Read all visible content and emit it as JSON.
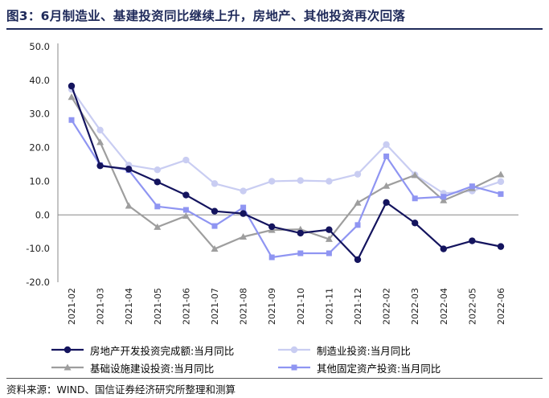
{
  "figure": {
    "title": "图3：6月制造业、基建投资同比继续上升，房地产、其他投资再次回落",
    "source": "资料来源：WIND、国信证券经济研究所整理和测算"
  },
  "chart_data": {
    "type": "line",
    "categories": [
      "2021-02",
      "2021-03",
      "2021-04",
      "2021-05",
      "2021-06",
      "2021-07",
      "2021-08",
      "2021-09",
      "2021-10",
      "2021-11",
      "2021-12",
      "2022-02",
      "2022-03",
      "2022-04",
      "2022-05",
      "2022-06"
    ],
    "y_tick_labels": [
      "50.0",
      "40.0",
      "30.0",
      "20.0",
      "10.0",
      "0.0",
      "-10.0",
      "-20.0"
    ],
    "ylim": [
      -20,
      50
    ],
    "grid": false,
    "legend_position": "bottom",
    "series": [
      {
        "name": "房地产开发投资完成额:当月同比",
        "color": "#14145e",
        "marker": "circle",
        "values": [
          38.3,
          14.6,
          13.6,
          9.8,
          5.9,
          1.1,
          0.4,
          -3.5,
          -5.4,
          -4.4,
          -13.3,
          3.7,
          -2.4,
          -10.1,
          -7.7,
          -9.4
        ]
      },
      {
        "name": "制造业投资:当月同比",
        "color": "#c9cdf2",
        "marker": "circle",
        "values": [
          37.3,
          25.2,
          14.8,
          13.4,
          16.3,
          9.3,
          7.1,
          10.0,
          10.2,
          10.0,
          12.1,
          20.9,
          11.9,
          6.4,
          7.1,
          9.9
        ]
      },
      {
        "name": "基础设施建设投资:当月同比",
        "color": "#9e9e9e",
        "marker": "triangle",
        "values": [
          35.0,
          21.6,
          2.7,
          -3.6,
          -0.3,
          -10.1,
          -6.5,
          -4.5,
          -4.3,
          -7.2,
          3.6,
          8.6,
          11.8,
          4.3,
          7.9,
          12.0
        ]
      },
      {
        "name": "其他固定资产投资:当月同比",
        "color": "#8f95f2",
        "marker": "square",
        "values": [
          28.2,
          14.8,
          13.3,
          2.5,
          1.5,
          -3.3,
          2.2,
          -12.6,
          -11.4,
          -11.4,
          -3.0,
          17.4,
          4.9,
          5.4,
          8.5,
          6.2
        ]
      }
    ]
  }
}
